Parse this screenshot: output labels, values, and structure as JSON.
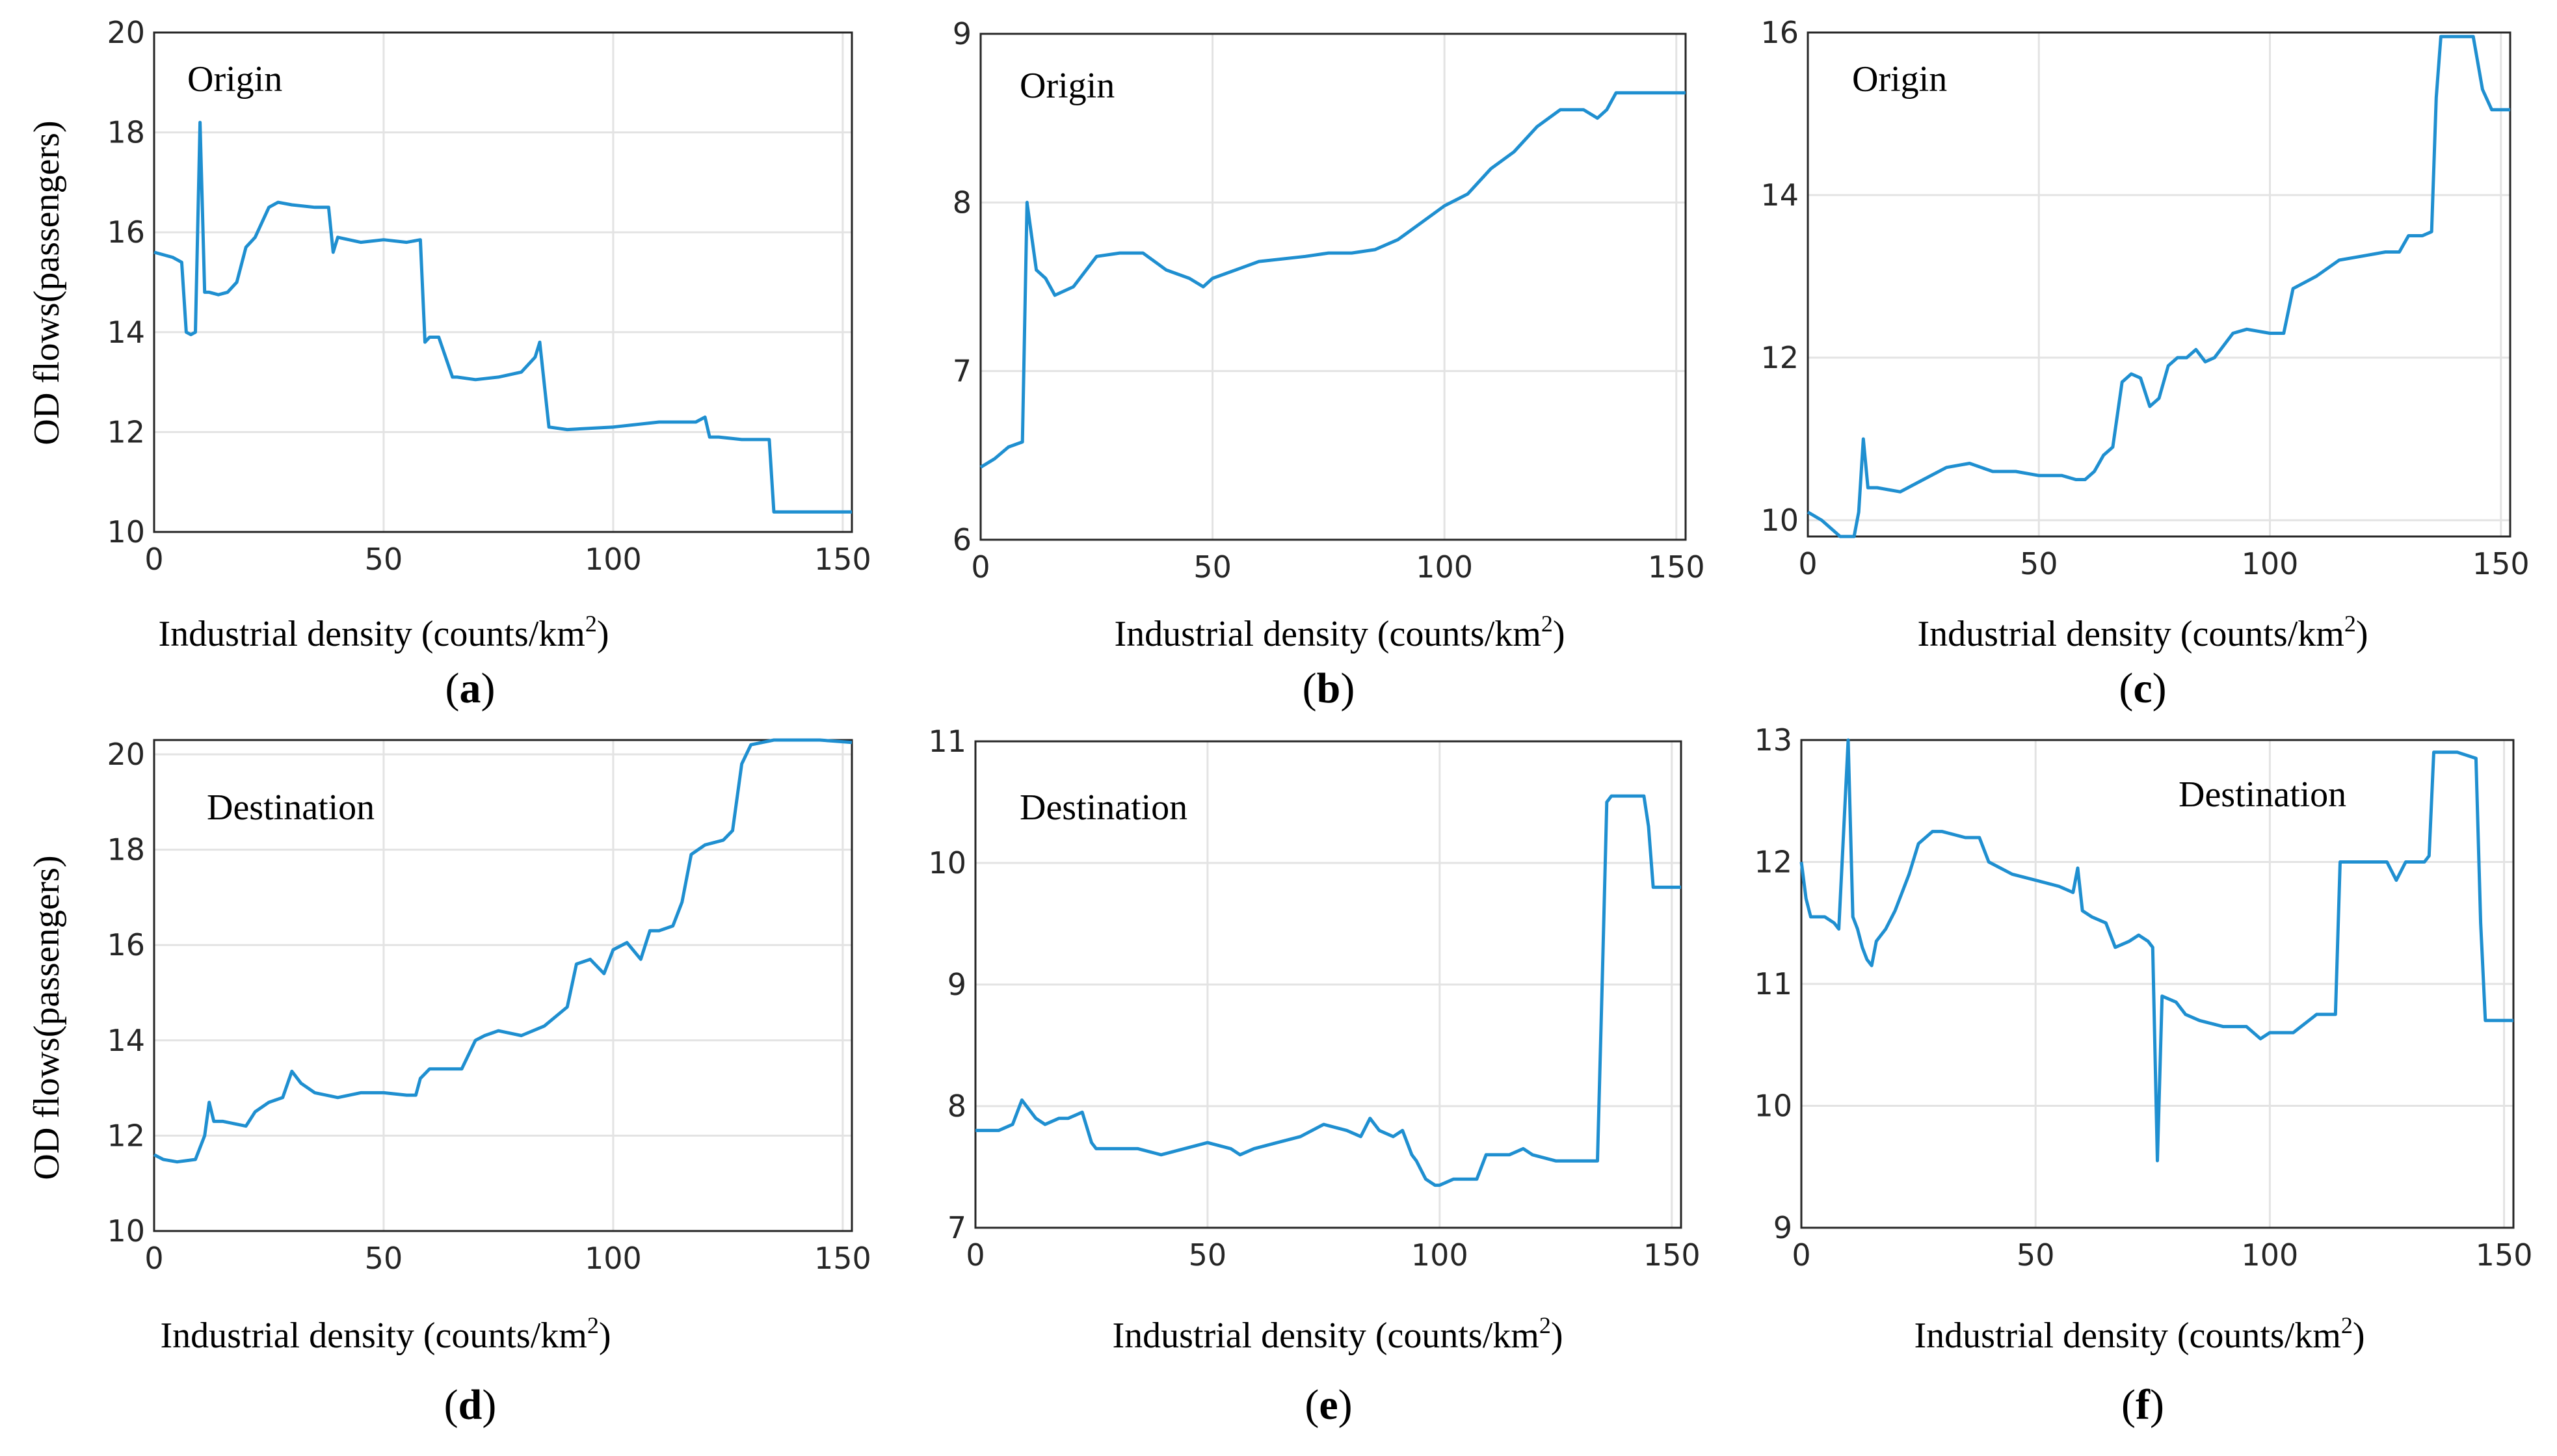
{
  "colors": {
    "line": "#1f8fd0",
    "axes": "#262626",
    "grid": "#e3e3e3"
  },
  "chart_data": [
    {
      "id": "a",
      "type": "line",
      "panel_label": "a",
      "annotation": "Origin",
      "xlabel": "Industrial density (counts/km",
      "xlabel_sup": "2",
      "xlabel_end": ")",
      "ylabel": "OD flows(passengers)",
      "xlim": [
        0,
        152
      ],
      "ylim": [
        10,
        20
      ],
      "xticks": [
        0,
        50,
        100,
        150
      ],
      "yticks": [
        10,
        12,
        14,
        16,
        18,
        20
      ],
      "x": [
        0,
        4,
        6,
        7,
        8,
        9,
        10,
        11,
        12,
        14,
        16,
        18,
        20,
        22,
        25,
        27,
        30,
        35,
        38,
        39,
        40,
        45,
        50,
        55,
        58,
        59,
        60,
        62,
        65,
        66,
        70,
        75,
        80,
        83,
        84,
        86,
        90,
        100,
        110,
        118,
        120,
        121,
        123,
        128,
        134,
        135,
        136,
        140,
        152
      ],
      "values": [
        15.6,
        15.5,
        15.4,
        14.0,
        13.95,
        14.0,
        18.2,
        14.8,
        14.8,
        14.75,
        14.8,
        15.0,
        15.7,
        15.9,
        16.5,
        16.6,
        16.55,
        16.5,
        16.5,
        15.6,
        15.9,
        15.8,
        15.85,
        15.8,
        15.85,
        13.8,
        13.9,
        13.9,
        13.1,
        13.1,
        13.05,
        13.1,
        13.2,
        13.5,
        13.8,
        12.1,
        12.05,
        12.1,
        12.2,
        12.2,
        12.3,
        11.9,
        11.9,
        11.85,
        11.85,
        10.4,
        10.4,
        10.4,
        10.4
      ]
    },
    {
      "id": "b",
      "type": "line",
      "panel_label": "b",
      "annotation": "Origin",
      "xlabel": "Industrial density (counts/km",
      "xlabel_sup": "2",
      "xlabel_end": ")",
      "ylabel": "",
      "xlim": [
        0,
        152
      ],
      "ylim": [
        6,
        9
      ],
      "xticks": [
        0,
        50,
        100,
        150
      ],
      "yticks": [
        6,
        7,
        8,
        9
      ],
      "x": [
        0,
        3,
        6,
        9,
        10,
        11,
        12,
        14,
        16,
        20,
        25,
        30,
        35,
        40,
        45,
        48,
        50,
        55,
        60,
        70,
        75,
        80,
        85,
        90,
        95,
        100,
        105,
        110,
        115,
        120,
        125,
        130,
        133,
        135,
        137,
        140,
        152
      ],
      "values": [
        6.43,
        6.48,
        6.55,
        6.58,
        8.0,
        7.8,
        7.6,
        7.55,
        7.45,
        7.5,
        7.68,
        7.7,
        7.7,
        7.6,
        7.55,
        7.5,
        7.55,
        7.6,
        7.65,
        7.68,
        7.7,
        7.7,
        7.72,
        7.78,
        7.88,
        7.98,
        8.05,
        8.2,
        8.3,
        8.45,
        8.55,
        8.55,
        8.5,
        8.55,
        8.65,
        8.65,
        8.65
      ]
    },
    {
      "id": "c",
      "type": "line",
      "panel_label": "c",
      "annotation": "Origin",
      "xlabel": "Industrial density (counts/km",
      "xlabel_sup": "2",
      "xlabel_end": ")",
      "ylabel": "",
      "xlim": [
        0,
        152
      ],
      "ylim": [
        9.8,
        16
      ],
      "xticks": [
        0,
        50,
        100,
        150
      ],
      "yticks": [
        10,
        12,
        14,
        16
      ],
      "x": [
        0,
        3,
        5,
        7,
        9,
        10,
        11,
        12,
        13,
        15,
        20,
        25,
        30,
        35,
        40,
        45,
        50,
        55,
        58,
        60,
        62,
        64,
        66,
        68,
        70,
        72,
        74,
        76,
        78,
        80,
        82,
        84,
        86,
        88,
        92,
        95,
        100,
        103,
        105,
        110,
        115,
        120,
        125,
        128,
        130,
        133,
        135,
        136,
        137,
        140,
        144,
        146,
        148,
        152
      ],
      "values": [
        10.1,
        10.0,
        9.9,
        9.8,
        9.8,
        9.8,
        10.1,
        11.0,
        10.4,
        10.4,
        10.35,
        10.5,
        10.65,
        10.7,
        10.6,
        10.6,
        10.55,
        10.55,
        10.5,
        10.5,
        10.6,
        10.8,
        10.9,
        11.7,
        11.8,
        11.75,
        11.4,
        11.5,
        11.9,
        12.0,
        12.0,
        12.1,
        11.95,
        12.0,
        12.3,
        12.35,
        12.3,
        12.3,
        12.85,
        13.0,
        13.2,
        13.25,
        13.3,
        13.3,
        13.5,
        13.5,
        13.55,
        15.2,
        15.95,
        15.95,
        15.95,
        15.3,
        15.05,
        15.05
      ]
    },
    {
      "id": "d",
      "type": "line",
      "panel_label": "d",
      "annotation": "Destination",
      "xlabel": "Industrial density (counts/km",
      "xlabel_sup": "2",
      "xlabel_end": ")",
      "ylabel": "OD flows(passengers)",
      "xlim": [
        0,
        152
      ],
      "ylim": [
        10,
        20.3
      ],
      "xticks": [
        0,
        50,
        100,
        150
      ],
      "yticks": [
        10,
        12,
        14,
        16,
        18,
        20
      ],
      "x": [
        0,
        2,
        5,
        9,
        11,
        12,
        13,
        15,
        20,
        22,
        25,
        28,
        30,
        32,
        35,
        40,
        45,
        50,
        55,
        57,
        58,
        60,
        65,
        67,
        70,
        72,
        75,
        80,
        85,
        90,
        92,
        95,
        98,
        100,
        103,
        106,
        108,
        110,
        113,
        115,
        117,
        120,
        124,
        126,
        128,
        130,
        135,
        140,
        145,
        152
      ],
      "values": [
        11.6,
        11.5,
        11.45,
        11.5,
        12.0,
        12.7,
        12.3,
        12.3,
        12.2,
        12.5,
        12.7,
        12.8,
        13.35,
        13.1,
        12.9,
        12.8,
        12.9,
        12.9,
        12.85,
        12.85,
        13.2,
        13.4,
        13.4,
        13.4,
        14.0,
        14.1,
        14.2,
        14.1,
        14.3,
        14.7,
        15.6,
        15.7,
        15.4,
        15.9,
        16.05,
        15.7,
        16.3,
        16.3,
        16.4,
        16.9,
        17.9,
        18.1,
        18.2,
        18.4,
        19.8,
        20.2,
        20.3,
        20.3,
        20.3,
        20.25
      ]
    },
    {
      "id": "e",
      "type": "line",
      "panel_label": "e",
      "annotation": "Destination",
      "xlabel": "Industrial density (counts/km",
      "xlabel_sup": "2",
      "xlabel_end": ")",
      "ylabel": "",
      "xlim": [
        0,
        152
      ],
      "ylim": [
        7,
        11
      ],
      "xticks": [
        0,
        50,
        100,
        150
      ],
      "yticks": [
        7,
        8,
        9,
        10,
        11
      ],
      "x": [
        0,
        5,
        8,
        10,
        11,
        13,
        15,
        18,
        20,
        23,
        25,
        26,
        30,
        35,
        40,
        45,
        50,
        55,
        57,
        60,
        65,
        70,
        75,
        80,
        83,
        85,
        87,
        90,
        92,
        94,
        95,
        97,
        99,
        100,
        103,
        105,
        108,
        110,
        115,
        118,
        120,
        125,
        130,
        134,
        135,
        136,
        137,
        140,
        144,
        145,
        146,
        148,
        152
      ],
      "values": [
        7.8,
        7.8,
        7.85,
        8.05,
        8.0,
        7.9,
        7.85,
        7.9,
        7.9,
        7.95,
        7.7,
        7.65,
        7.65,
        7.65,
        7.6,
        7.65,
        7.7,
        7.65,
        7.6,
        7.65,
        7.7,
        7.75,
        7.85,
        7.8,
        7.75,
        7.9,
        7.8,
        7.75,
        7.8,
        7.6,
        7.55,
        7.4,
        7.35,
        7.35,
        7.4,
        7.4,
        7.4,
        7.6,
        7.6,
        7.65,
        7.6,
        7.55,
        7.55,
        7.55,
        9.0,
        10.5,
        10.55,
        10.55,
        10.55,
        10.3,
        9.8,
        9.8,
        9.8
      ]
    },
    {
      "id": "f",
      "type": "line",
      "panel_label": "f",
      "annotation": "Destination",
      "xlabel": "Industrial density (counts/km",
      "xlabel_sup": "2",
      "xlabel_end": ")",
      "ylabel": "",
      "xlim": [
        0,
        152
      ],
      "ylim": [
        9,
        13
      ],
      "xticks": [
        0,
        50,
        100,
        150
      ],
      "yticks": [
        9,
        10,
        11,
        12,
        13
      ],
      "x": [
        0,
        1,
        2,
        5,
        7,
        8,
        10,
        11,
        12,
        13,
        14,
        15,
        16,
        18,
        20,
        23,
        25,
        28,
        30,
        35,
        38,
        39,
        40,
        45,
        50,
        55,
        58,
        59,
        60,
        62,
        65,
        67,
        70,
        72,
        74,
        75,
        76,
        77,
        80,
        82,
        85,
        90,
        95,
        98,
        100,
        105,
        110,
        114,
        115,
        120,
        125,
        127,
        129,
        130,
        133,
        134,
        135,
        136,
        137,
        140,
        144,
        145,
        146,
        148,
        152
      ],
      "values": [
        12.0,
        11.7,
        11.55,
        11.55,
        11.5,
        11.45,
        13.0,
        11.55,
        11.45,
        11.3,
        11.2,
        11.15,
        11.35,
        11.45,
        11.6,
        11.9,
        12.15,
        12.25,
        12.25,
        12.2,
        12.2,
        12.1,
        12.0,
        11.9,
        11.85,
        11.8,
        11.75,
        11.95,
        11.6,
        11.55,
        11.5,
        11.3,
        11.35,
        11.4,
        11.35,
        11.3,
        9.55,
        10.9,
        10.85,
        10.75,
        10.7,
        10.65,
        10.65,
        10.55,
        10.6,
        10.6,
        10.75,
        10.75,
        12.0,
        12.0,
        12.0,
        11.85,
        12.0,
        12.0,
        12.0,
        12.05,
        12.9,
        12.9,
        12.9,
        12.9,
        12.85,
        11.5,
        10.7,
        10.7,
        10.7
      ]
    }
  ]
}
